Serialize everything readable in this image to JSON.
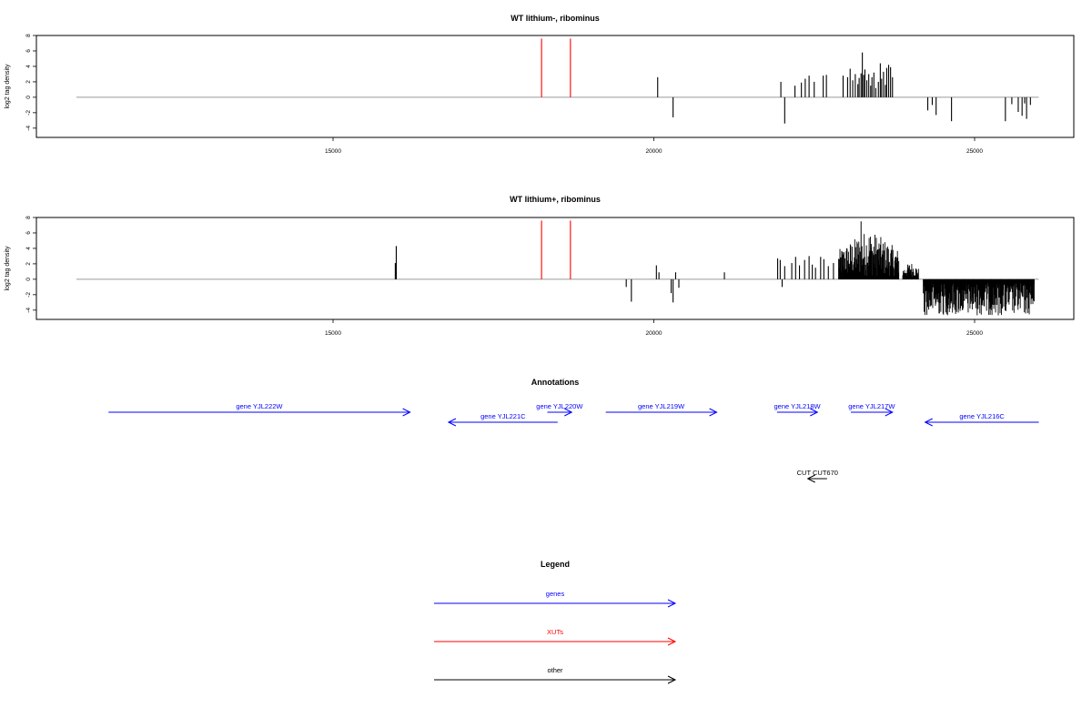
{
  "colors": {
    "genes": "#0000ff",
    "xuts": "#ff0000",
    "other": "#000000",
    "baseline": "#9a9a9a",
    "frame": "#000000",
    "background": "#ffffff"
  },
  "chart_data": [
    {
      "type": "bar",
      "title": "WT lithium-, ribominus",
      "ylabel": "log2 tag density",
      "xlim": [
        11000,
        26500
      ],
      "ylim": [
        -5.2,
        8
      ],
      "x_ticks": [
        15000,
        20000,
        25000
      ],
      "y_ticks": [
        -4,
        -2,
        0,
        2,
        4,
        6,
        8
      ],
      "baseline_range": [
        11000,
        26000
      ],
      "series": [
        {
          "color": "#ff0000",
          "values": [
            [
              18250,
              7.6
            ],
            [
              18700,
              7.6
            ]
          ]
        },
        {
          "color": "#000000",
          "values": [
            [
              20060,
              2.6
            ],
            [
              20300,
              -2.6
            ],
            [
              21980,
              2.0
            ],
            [
              22040,
              -3.4
            ],
            [
              22200,
              1.5
            ],
            [
              22300,
              1.9
            ],
            [
              22360,
              2.4
            ],
            [
              22420,
              2.8
            ],
            [
              22500,
              2.0
            ],
            [
              22640,
              2.8
            ],
            [
              22690,
              2.9
            ],
            [
              22950,
              2.8
            ],
            [
              23020,
              2.6
            ],
            [
              23060,
              3.7
            ],
            [
              23100,
              2.2
            ],
            [
              23140,
              3.0
            ],
            [
              23180,
              1.7
            ],
            [
              23200,
              2.5
            ],
            [
              23230,
              3.1
            ],
            [
              23250,
              5.8
            ],
            [
              23270,
              2.9
            ],
            [
              23290,
              3.6
            ],
            [
              23320,
              2.2
            ],
            [
              23350,
              3.0
            ],
            [
              23380,
              1.5
            ],
            [
              23400,
              2.6
            ],
            [
              23430,
              3.2
            ],
            [
              23460,
              1.2
            ],
            [
              23500,
              2.0
            ],
            [
              23530,
              4.4
            ],
            [
              23550,
              2.4
            ],
            [
              23580,
              3.3
            ],
            [
              23610,
              1.6
            ],
            [
              23630,
              3.8
            ],
            [
              23660,
              4.2
            ],
            [
              23690,
              3.9
            ],
            [
              23720,
              2.6
            ],
            [
              24270,
              -1.7
            ],
            [
              24340,
              -1.0
            ],
            [
              24400,
              -2.3
            ],
            [
              24640,
              -3.1
            ],
            [
              25480,
              -3.1
            ],
            [
              25580,
              -0.9
            ],
            [
              25680,
              -1.9
            ],
            [
              25740,
              -2.4
            ],
            [
              25780,
              -0.8
            ],
            [
              25810,
              -2.8
            ],
            [
              25870,
              -1.0
            ]
          ]
        }
      ]
    },
    {
      "type": "bar",
      "title": "WT lithium+, ribominus",
      "ylabel": "log2 tag density",
      "xlim": [
        11000,
        26500
      ],
      "ylim": [
        -5.2,
        8
      ],
      "x_ticks": [
        15000,
        20000,
        25000
      ],
      "y_ticks": [
        -4,
        -2,
        0,
        2,
        4,
        6,
        8
      ],
      "baseline_range": [
        11000,
        26000
      ],
      "series": [
        {
          "color": "#ff0000",
          "values": [
            [
              18250,
              7.6
            ],
            [
              18700,
              7.6
            ]
          ]
        },
        {
          "color": "#000000",
          "values": [
            [
              15970,
              2.1
            ],
            [
              15985,
              4.3
            ],
            [
              19570,
              -1.0
            ],
            [
              19650,
              -2.9
            ],
            [
              20040,
              1.8
            ],
            [
              20080,
              0.9
            ],
            [
              20270,
              -1.8
            ],
            [
              20300,
              -3.0
            ],
            [
              20340,
              0.9
            ],
            [
              20390,
              -1.1
            ],
            [
              21100,
              0.9
            ],
            [
              21930,
              2.7
            ],
            [
              21970,
              2.5
            ],
            [
              22000,
              -1.0
            ],
            [
              22040,
              1.7
            ],
            [
              22150,
              2.1
            ],
            [
              22210,
              2.9
            ],
            [
              22270,
              1.8
            ],
            [
              22350,
              2.5
            ],
            [
              22420,
              3.0
            ],
            [
              22470,
              1.9
            ],
            [
              22520,
              1.5
            ],
            [
              22600,
              2.9
            ],
            [
              22650,
              2.6
            ],
            [
              22720,
              1.7
            ],
            [
              22800,
              2.1
            ],
            [
              24310,
              -1.4
            ],
            [
              24420,
              -2.6
            ],
            [
              24560,
              -3.1
            ],
            [
              24700,
              -2.3
            ],
            [
              24840,
              -2.8
            ],
            [
              24980,
              -2.3
            ],
            [
              25120,
              -3.0
            ],
            [
              25260,
              -2.5
            ],
            [
              25400,
              -3.2
            ],
            [
              25540,
              -2.6
            ],
            [
              25680,
              -3.0
            ],
            [
              25820,
              -2.4
            ],
            [
              25900,
              -1.7
            ]
          ]
        }
      ],
      "dense_clusters": [
        {
          "x_range": [
            22880,
            23820
          ],
          "min": 0.4,
          "max": 6.6,
          "peak_x": 23230,
          "peak": 7.5
        },
        {
          "x_range": [
            23880,
            24130
          ],
          "min": 0.3,
          "max": 2.3
        },
        {
          "x_range": [
            24200,
            25930
          ],
          "min": -4.7,
          "max": -0.5
        }
      ]
    }
  ],
  "annotations": {
    "title": "Annotations",
    "xlim": [
      11000,
      26500
    ],
    "features": [
      {
        "label": "gene YJL222W",
        "start": 11500,
        "end": 16200,
        "strand": "+",
        "color": "#0000ff"
      },
      {
        "label": "gene YJL221C",
        "start": 16800,
        "end": 18500,
        "strand": "-",
        "color": "#0000ff"
      },
      {
        "label": "gene YJL220W",
        "start": 18340,
        "end": 18720,
        "strand": "+",
        "color": "#0000ff"
      },
      {
        "label": "gene YJL219W",
        "start": 19250,
        "end": 20980,
        "strand": "+",
        "color": "#0000ff"
      },
      {
        "label": "gene YJL218W",
        "start": 21920,
        "end": 22550,
        "strand": "+",
        "color": "#0000ff"
      },
      {
        "label": "gene YJL217W",
        "start": 23070,
        "end": 23720,
        "strand": "+",
        "color": "#0000ff"
      },
      {
        "label": "gene YJL216C",
        "start": 24230,
        "end": 26000,
        "strand": "-",
        "color": "#0000ff"
      },
      {
        "label": "CUT CUT670",
        "start": 22400,
        "end": 22700,
        "strand": "-",
        "color": "#000000"
      }
    ]
  },
  "legend": {
    "title": "Legend",
    "items": [
      {
        "label": "genes",
        "color": "#0000ff"
      },
      {
        "label": "XUTs",
        "color": "#ff0000"
      },
      {
        "label": "other",
        "color": "#000000"
      }
    ]
  }
}
